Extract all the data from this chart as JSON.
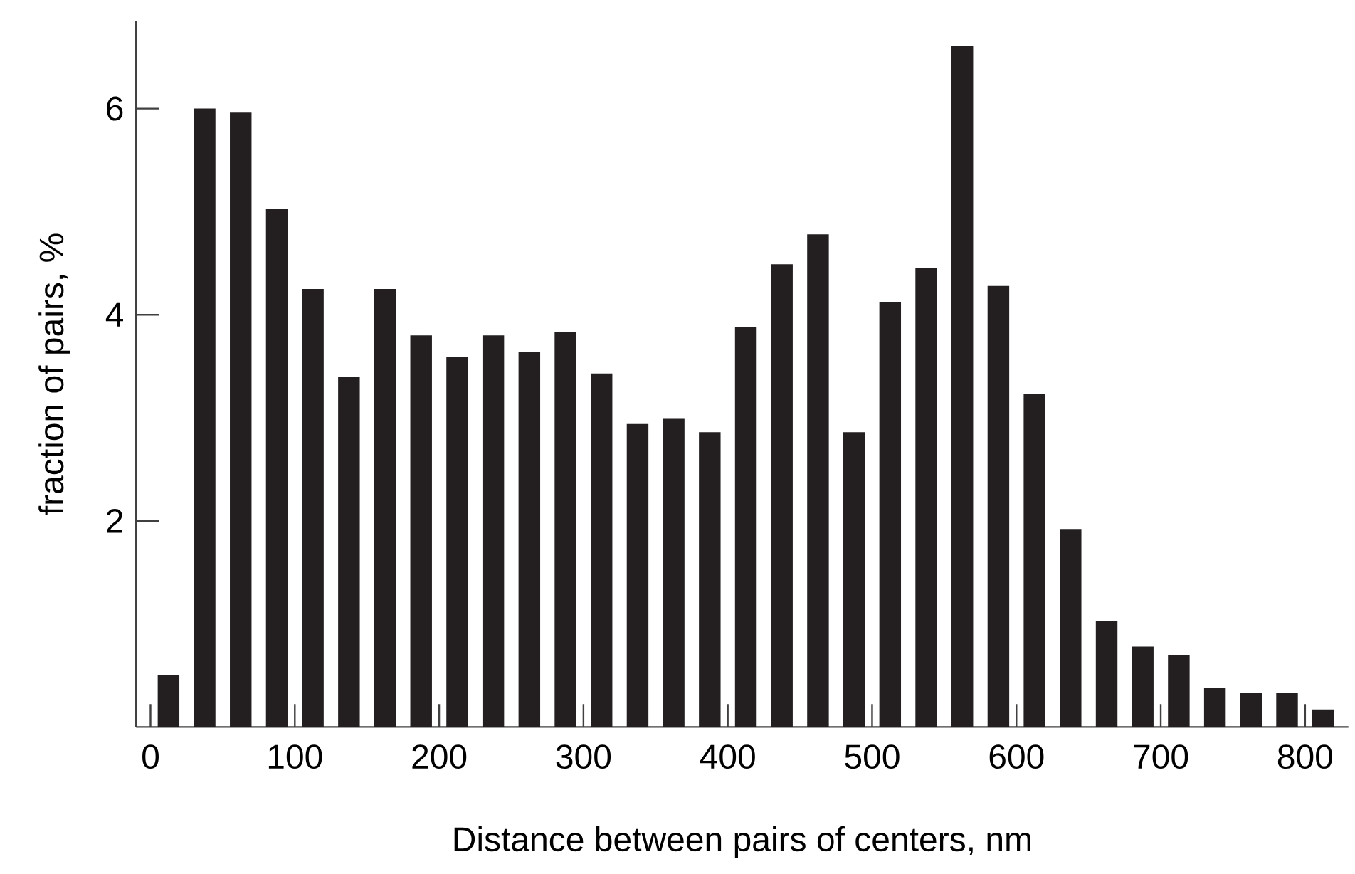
{
  "chart_data": {
    "type": "histogram",
    "xlabel": "Distance between pairs of centers, nm",
    "ylabel": "fraction of pairs, %",
    "bins": [
      0,
      25,
      50,
      75,
      100,
      125,
      150,
      175,
      200,
      225,
      250,
      275,
      300,
      325,
      350,
      375,
      400,
      425,
      450,
      475,
      500,
      525,
      550,
      575,
      600,
      625,
      650,
      675,
      700,
      725,
      750,
      775,
      800,
      825
    ],
    "values": [
      0.5,
      6.0,
      5.96,
      5.03,
      4.25,
      3.4,
      4.25,
      3.8,
      3.59,
      3.8,
      3.64,
      3.83,
      3.43,
      2.94,
      2.99,
      2.86,
      3.88,
      4.49,
      4.78,
      2.86,
      4.12,
      4.45,
      6.61,
      4.28,
      3.23,
      1.92,
      1.03,
      0.78,
      0.7,
      0.38,
      0.33,
      0.33,
      0.17
    ],
    "color": "#231f20",
    "xlim": [
      -10,
      830
    ],
    "ylim": [
      0,
      6.85
    ],
    "xticks": [
      0,
      100,
      200,
      300,
      400,
      500,
      600,
      700,
      800
    ],
    "yticks": [
      2,
      4,
      6
    ],
    "grid": false
  }
}
